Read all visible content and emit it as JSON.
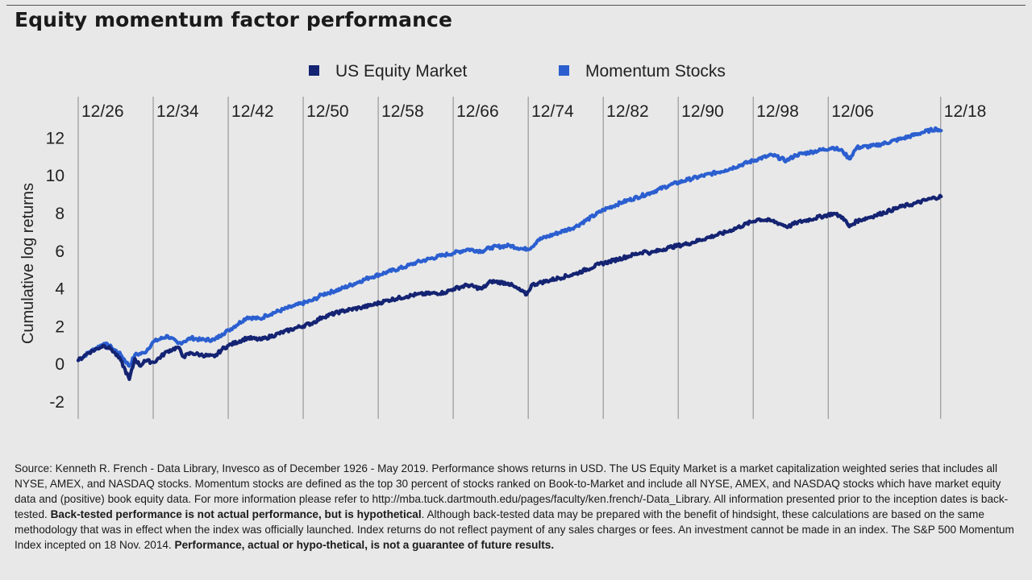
{
  "title": "Equity momentum factor performance",
  "colors": {
    "background": "#e8e8e8",
    "us_equity_market": "#142372",
    "momentum_stocks": "#2b5fd0",
    "gridline": "#888888"
  },
  "chart_data": {
    "type": "line",
    "title": "Equity momentum factor performance",
    "ylabel": "Cumulative log returns",
    "xlabel": "",
    "ylim": [
      -2.9,
      14.2
    ],
    "xlim": [
      1926.95,
      2019.4
    ],
    "yticks": [
      -2,
      0,
      2,
      4,
      6,
      8,
      10,
      12
    ],
    "ytick_labels": [
      "-2",
      "0",
      "2",
      "4",
      "6",
      "8",
      "10",
      "12"
    ],
    "xticks": [
      1926.95,
      1934.95,
      1942.95,
      1950.95,
      1958.95,
      1966.95,
      1974.95,
      1982.95,
      1990.95,
      1998.95,
      2006.95,
      2018.95
    ],
    "xtick_labels": [
      "12/26",
      "12/34",
      "12/42",
      "12/50",
      "12/58",
      "12/66",
      "12/74",
      "12/82",
      "12/90",
      "12/98",
      "12/06",
      "12/18"
    ],
    "grid": "vertical",
    "legend_placement": "top-center",
    "series": [
      {
        "name": "US Equity Market",
        "x": [
          1926.95,
          1928.0,
          1929.7,
          1930.5,
          1931.5,
          1932.4,
          1933.0,
          1933.6,
          1934.0,
          1935.0,
          1936.5,
          1937.6,
          1938.2,
          1939.0,
          1940.0,
          1941.5,
          1942.3,
          1943.0,
          1945.0,
          1946.4,
          1947.0,
          1950.0,
          1952.0,
          1953.0,
          1955.0,
          1957.0,
          1958.0,
          1960.0,
          1962.0,
          1963.0,
          1966.0,
          1967.0,
          1968.5,
          1970.0,
          1971.0,
          1972.8,
          1973.5,
          1974.8,
          1975.3,
          1976.0,
          1980.0,
          1982.5,
          1984.0,
          1987.5,
          1988.0,
          1990.0,
          1992.0,
          1996.0,
          1999.5,
          2001.0,
          2002.7,
          2003.5,
          2007.5,
          2008.5,
          2009.2,
          2010.0,
          2012.0,
          2015.0,
          2016.0,
          2018.0,
          2019.0
        ],
        "values": [
          0.2,
          0.6,
          1.0,
          0.8,
          0.2,
          -0.8,
          0.3,
          -0.1,
          0.2,
          0.1,
          0.7,
          0.9,
          0.4,
          0.6,
          0.5,
          0.4,
          0.8,
          1.0,
          1.4,
          1.3,
          1.4,
          1.9,
          2.2,
          2.5,
          2.8,
          3.0,
          3.1,
          3.4,
          3.6,
          3.7,
          3.8,
          4.0,
          4.2,
          4.0,
          4.4,
          4.3,
          4.1,
          3.7,
          4.2,
          4.3,
          4.8,
          5.3,
          5.5,
          6.0,
          5.9,
          6.2,
          6.4,
          7.0,
          7.7,
          7.6,
          7.3,
          7.5,
          8.0,
          7.8,
          7.3,
          7.6,
          7.9,
          8.4,
          8.5,
          8.8,
          8.9
        ]
      },
      {
        "name": "Momentum Stocks",
        "x": [
          1926.95,
          1928.0,
          1929.7,
          1930.5,
          1931.5,
          1932.4,
          1933.0,
          1934.0,
          1935.0,
          1936.5,
          1937.6,
          1938.2,
          1939.0,
          1940.0,
          1941.5,
          1942.3,
          1943.0,
          1945.0,
          1946.4,
          1947.0,
          1950.0,
          1952.0,
          1953.0,
          1955.0,
          1957.0,
          1958.0,
          1960.0,
          1962.0,
          1963.0,
          1966.0,
          1967.0,
          1968.5,
          1970.0,
          1971.0,
          1973.0,
          1974.5,
          1975.3,
          1976.0,
          1980.0,
          1983.0,
          1985.0,
          1988.0,
          1990.0,
          1992.0,
          1996.0,
          1999.5,
          2001.0,
          2002.5,
          2003.5,
          2007.5,
          2008.5,
          2009.2,
          2010.0,
          2012.0,
          2015.0,
          2017.0,
          2018.5,
          2019.0
        ],
        "values": [
          0.2,
          0.6,
          1.1,
          0.9,
          0.5,
          -0.1,
          0.5,
          0.6,
          1.2,
          1.5,
          1.1,
          1.2,
          1.4,
          1.3,
          1.3,
          1.6,
          1.8,
          2.5,
          2.4,
          2.6,
          3.1,
          3.4,
          3.7,
          4.0,
          4.4,
          4.6,
          4.9,
          5.2,
          5.4,
          5.8,
          5.9,
          6.1,
          6.0,
          6.2,
          6.3,
          6.1,
          6.2,
          6.6,
          7.3,
          8.2,
          8.6,
          9.1,
          9.5,
          9.8,
          10.3,
          10.9,
          11.1,
          10.8,
          11.1,
          11.5,
          11.3,
          10.9,
          11.5,
          11.6,
          12.0,
          12.3,
          12.5,
          12.4
        ]
      }
    ]
  },
  "footnote": {
    "p1": "Source: Kenneth R. French - Data Library, Invesco as of December 1926 - May 2019. Performance shows returns in USD. The US Equity Market is a market capitalization weighted series that includes all NYSE, AMEX, and NASDAQ stocks. Momentum stocks are defined as the top 30 percent of stocks ranked on Book-to-Market and include all NYSE, AMEX, and NASDAQ stocks which have market equity data and (positive) book equity data. For more information please refer to http://mba.tuck.dartmouth.edu/pages/faculty/ken.french/-Data_Library. All information presented prior to the inception dates is back-tested. ",
    "b1": "Back-tested performance is not actual performance, but is hypothetical",
    "p2": ". Although back-tested data may be prepared with the benefit of hindsight, these calculations are based on the same methodology that was in effect when the index was officially launched. Index returns do not reflect payment of any sales charges or fees. An investment cannot be made in an index. The S&P 500 Momentum Index incepted on 18 Nov. 2014. ",
    "b2": "Performance, actual or hypo-thetical, is not a guarantee of future results."
  }
}
